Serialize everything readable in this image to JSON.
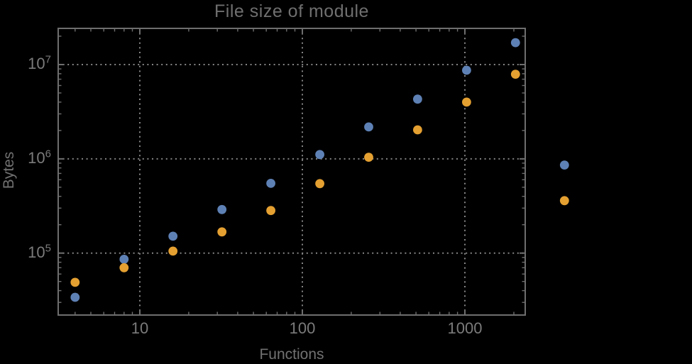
{
  "chart_data": {
    "type": "scatter",
    "title": "File size of module",
    "xlabel": "Functions",
    "ylabel": "Bytes",
    "x_scale": "log",
    "y_scale": "log",
    "grid": "dotted",
    "legend": "none",
    "x": [
      4,
      8,
      16,
      32,
      64,
      128,
      256,
      512,
      1024,
      2048,
      4096
    ],
    "series": [
      {
        "name": "blue",
        "color": "#5E81B5",
        "values": [
          34000,
          86000,
          151000,
          290000,
          550000,
          1110000,
          2180000,
          4300000,
          8700000,
          17100000,
          860000
        ]
      },
      {
        "name": "orange",
        "color": "#E4A031",
        "values": [
          49000,
          70000,
          105000,
          168000,
          283000,
          546000,
          1040000,
          2030000,
          4000000,
          7900000,
          360000
        ]
      }
    ],
    "xticks": {
      "major": [
        10,
        100,
        1000
      ],
      "labels": [
        "10",
        "100",
        "1000"
      ]
    },
    "yticks": {
      "major": [
        100000,
        1000000,
        10000000
      ],
      "labels": [
        [
          "10",
          "5"
        ],
        [
          "10",
          "6"
        ],
        [
          "10",
          "7"
        ]
      ]
    },
    "xlim_log": [
      0.498,
      3.371
    ],
    "ylim_log": [
      4.343,
      7.384
    ],
    "colors": {
      "background": "#000000",
      "frame": "#6e6e6e",
      "grid": "#858585",
      "tick_text": "#7b7b7b",
      "title_text": "#6f6f6f",
      "axis_label_text": "#717171"
    }
  }
}
